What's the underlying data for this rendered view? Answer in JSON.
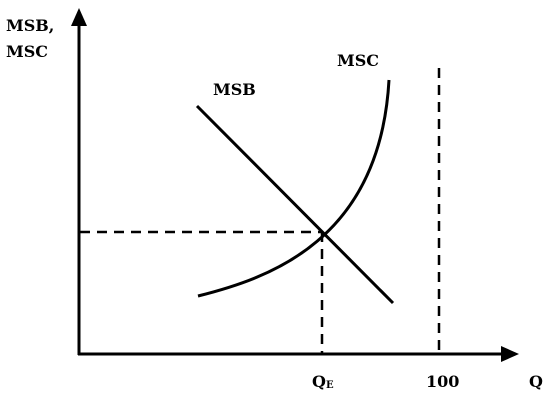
{
  "diagram": {
    "y_axis_label_line1": "MSB,",
    "y_axis_label_line2": "MSC",
    "x_axis_label": "Q",
    "msb_label": "MSB",
    "msc_label": "MSC",
    "equilibrium_label": "Q",
    "equilibrium_subscript": "E",
    "hundred_label": "100"
  }
}
